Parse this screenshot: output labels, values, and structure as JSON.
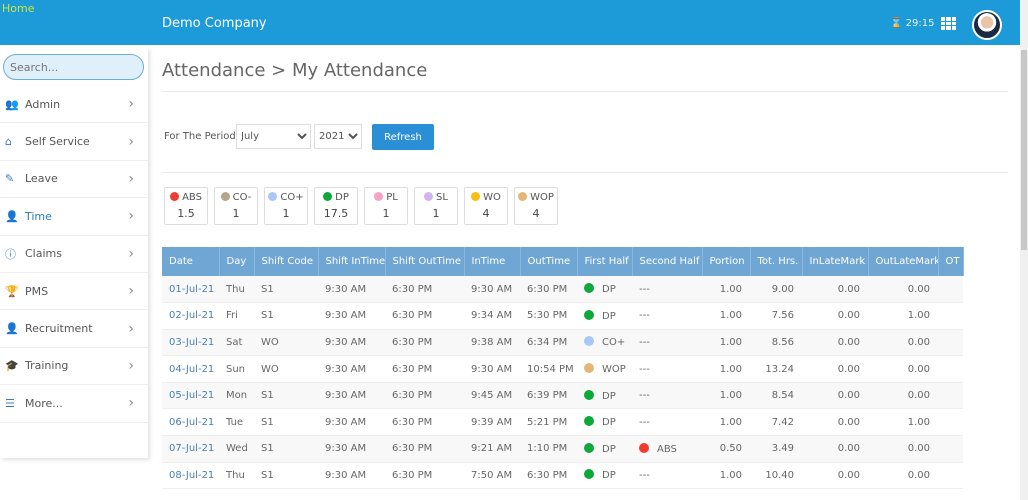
{
  "header": {
    "home_alt": "Home",
    "company": "Demo Company",
    "timer": "29:15"
  },
  "sidebar": {
    "search_placeholder": "Search...",
    "items": [
      {
        "label": "Admin",
        "icon": "users-icon",
        "glyph": "👥"
      },
      {
        "label": "Self Service",
        "icon": "home-icon",
        "glyph": "⌂"
      },
      {
        "label": "Leave",
        "icon": "edit-icon",
        "glyph": "✎"
      },
      {
        "label": "Time",
        "icon": "user-clock-icon",
        "glyph": "👤"
      },
      {
        "label": "Claims",
        "icon": "info-icon",
        "glyph": "ⓘ"
      },
      {
        "label": "PMS",
        "icon": "trophy-icon",
        "glyph": "🏆"
      },
      {
        "label": "Recruitment",
        "icon": "user-tie-icon",
        "glyph": "👤"
      },
      {
        "label": "Training",
        "icon": "graduation-cap-icon",
        "glyph": "🎓"
      },
      {
        "label": "More...",
        "icon": "list-icon",
        "glyph": "☰"
      }
    ]
  },
  "page": {
    "title": "Attendance > My Attendance",
    "period_label": "For The Period",
    "month": "July",
    "year": "2021",
    "refresh": "Refresh"
  },
  "legend": [
    {
      "code": "ABS",
      "value": "1.5",
      "color": "#f03c2e"
    },
    {
      "code": "CO-",
      "value": "1",
      "color": "#b5a58c"
    },
    {
      "code": "CO+",
      "value": "1",
      "color": "#a9c8f5"
    },
    {
      "code": "DP",
      "value": "17.5",
      "color": "#0ca83a"
    },
    {
      "code": "PL",
      "value": "1",
      "color": "#f5a3c4"
    },
    {
      "code": "SL",
      "value": "1",
      "color": "#d4b3f0"
    },
    {
      "code": "WO",
      "value": "4",
      "color": "#f7c010"
    },
    {
      "code": "WOP",
      "value": "4",
      "color": "#e6b674"
    }
  ],
  "table": {
    "columns": [
      "Date",
      "Day",
      "Shift Code",
      "Shift InTime",
      "Shift OutTime",
      "InTime",
      "OutTime",
      "First Half",
      "Second Half",
      "Portion",
      "Tot. Hrs.",
      "InLateMark",
      "OutLateMark",
      "OT"
    ],
    "rows": [
      [
        "01-Jul-21",
        "Thu",
        "S1",
        "9:30 AM",
        "6:30 PM",
        "9:30 AM",
        "6:30 PM",
        "DP",
        "---",
        "1.00",
        "9.00",
        "0.00",
        "0.00"
      ],
      [
        "02-Jul-21",
        "Fri",
        "S1",
        "9:30 AM",
        "6:30 PM",
        "9:34 AM",
        "5:30 PM",
        "DP",
        "---",
        "1.00",
        "7.56",
        "0.00",
        "1.00"
      ],
      [
        "03-Jul-21",
        "Sat",
        "WO",
        "9:30 AM",
        "6:30 PM",
        "9:38 AM",
        "6:34 PM",
        "CO+",
        "---",
        "1.00",
        "8.56",
        "0.00",
        "0.00"
      ],
      [
        "04-Jul-21",
        "Sun",
        "WO",
        "9:30 AM",
        "6:30 PM",
        "9:30 AM",
        "10:54 PM",
        "WOP",
        "---",
        "1.00",
        "13.24",
        "0.00",
        "0.00"
      ],
      [
        "05-Jul-21",
        "Mon",
        "S1",
        "9:30 AM",
        "6:30 PM",
        "9:45 AM",
        "6:39 PM",
        "DP",
        "---",
        "1.00",
        "8.54",
        "0.00",
        "0.00"
      ],
      [
        "06-Jul-21",
        "Tue",
        "S1",
        "9:30 AM",
        "6:30 PM",
        "9:39 AM",
        "5:21 PM",
        "DP",
        "---",
        "1.00",
        "7.42",
        "0.00",
        "1.00"
      ],
      [
        "07-Jul-21",
        "Wed",
        "S1",
        "9:30 AM",
        "6:30 PM",
        "9:21 AM",
        "1:10 PM",
        "DP",
        "ABS",
        "0.50",
        "3.49",
        "0.00",
        "0.00"
      ],
      [
        "08-Jul-21",
        "Thu",
        "S1",
        "9:30 AM",
        "6:30 PM",
        "7:50 AM",
        "6:30 PM",
        "DP",
        "---",
        "1.00",
        "10.40",
        "0.00",
        "0.00"
      ]
    ]
  }
}
